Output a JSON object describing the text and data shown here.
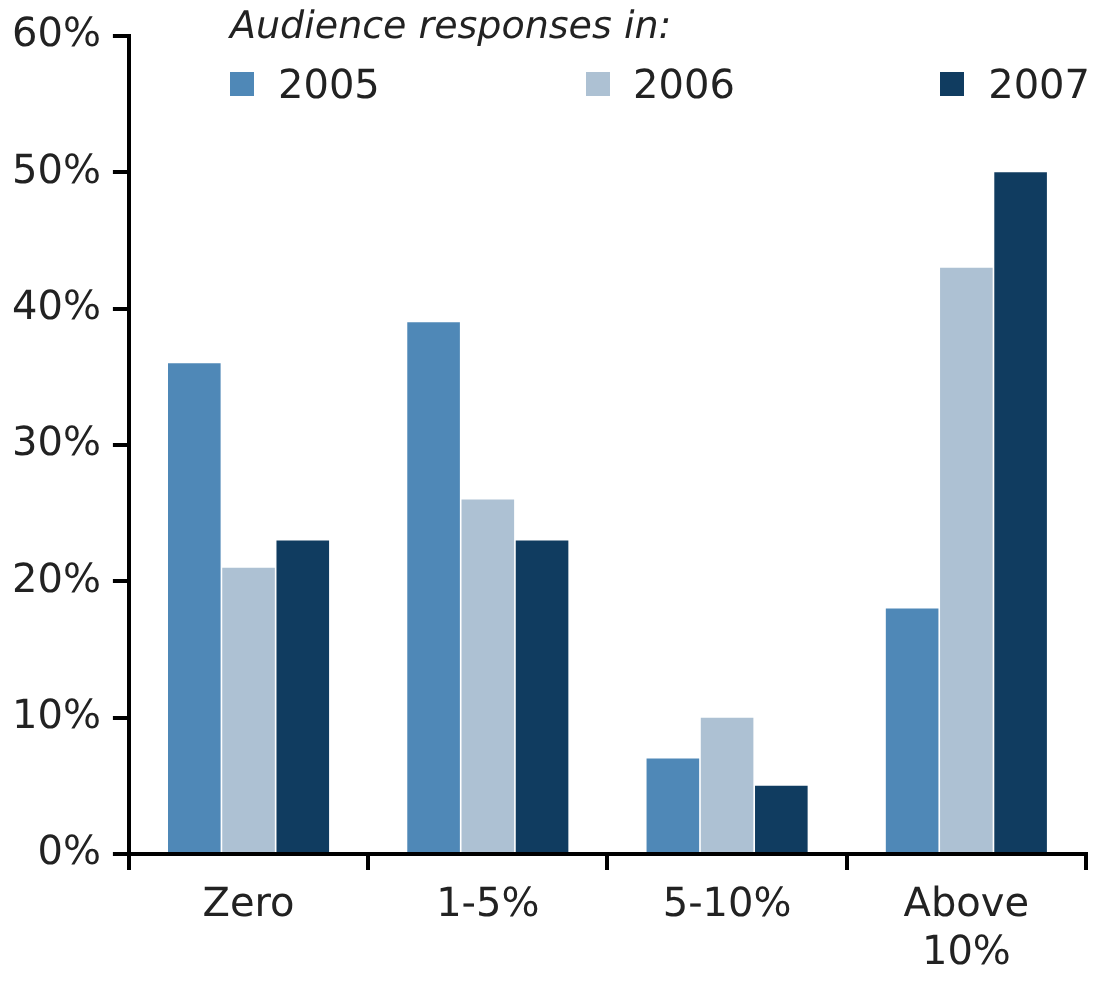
{
  "chart_data": {
    "type": "bar",
    "legend_title": "Audience responses in:",
    "legend": "top",
    "categories": [
      "Zero",
      "1-5%",
      "5-10%",
      "Above 10%"
    ],
    "series": [
      {
        "name": "2005",
        "color": "#4f88b7",
        "values": [
          36,
          39,
          7,
          18
        ]
      },
      {
        "name": "2006",
        "color": "#adc1d3",
        "values": [
          21,
          26,
          10,
          43
        ]
      },
      {
        "name": "2007",
        "color": "#103c60",
        "values": [
          23,
          23,
          5,
          50
        ]
      }
    ],
    "ylim": [
      0,
      60
    ],
    "yticks": [
      {
        "value": 0,
        "label": "0%"
      },
      {
        "value": 10,
        "label": "10%"
      },
      {
        "value": 20,
        "label": "20%"
      },
      {
        "value": 30,
        "label": "30%"
      },
      {
        "value": 40,
        "label": "40%"
      },
      {
        "value": 50,
        "label": "50%"
      },
      {
        "value": 60,
        "label": "60%"
      }
    ],
    "grid": false
  }
}
